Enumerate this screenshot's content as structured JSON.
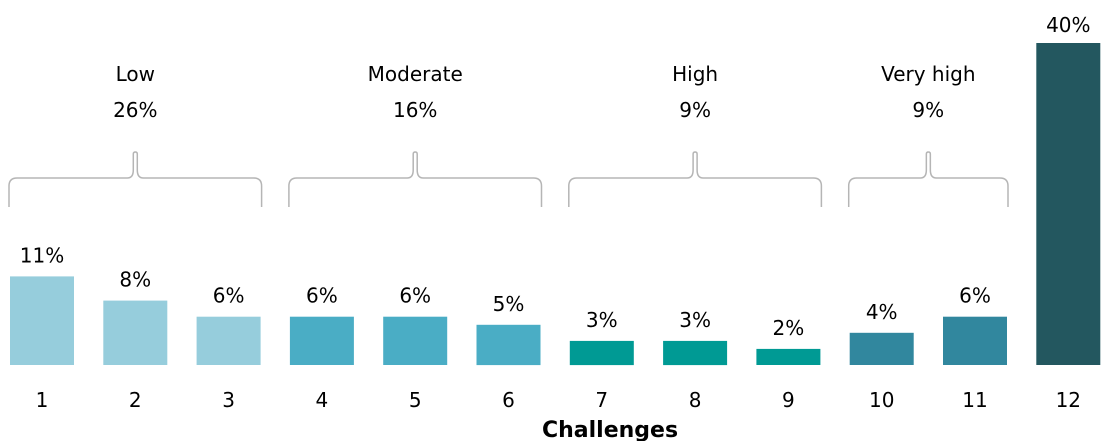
{
  "chart_data": {
    "type": "bar",
    "xlabel": "Challenges",
    "ylabel": "",
    "categories": [
      "1",
      "2",
      "3",
      "4",
      "5",
      "6",
      "7",
      "8",
      "9",
      "10",
      "11",
      "12"
    ],
    "values": [
      11,
      8,
      6,
      6,
      6,
      5,
      3,
      3,
      2,
      4,
      6,
      40
    ],
    "value_labels": [
      "11%",
      "8%",
      "6%",
      "6%",
      "6%",
      "5%",
      "3%",
      "3%",
      "2%",
      "4%",
      "6%",
      "40%"
    ],
    "colors": [
      "#96cddc",
      "#96cddc",
      "#96cddc",
      "#4aadc5",
      "#4aadc5",
      "#4aadc5",
      "#009a94",
      "#009a94",
      "#009a94",
      "#31879e",
      "#31879e",
      "#23575f"
    ],
    "groups": [
      {
        "name": "Low",
        "percent": "26%",
        "from": 0,
        "to": 2
      },
      {
        "name": "Moderate",
        "percent": "16%",
        "from": 3,
        "to": 5
      },
      {
        "name": "High",
        "percent": "9%",
        "from": 6,
        "to": 8
      },
      {
        "name": "Very high",
        "percent": "9%",
        "from": 9,
        "to": 10
      }
    ],
    "grid": false,
    "legend": "none"
  }
}
